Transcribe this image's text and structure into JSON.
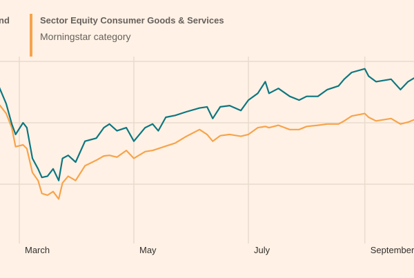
{
  "legend": {
    "series1_label_visible": "nd",
    "series2_title": "Sector Equity Consumer Goods & Services",
    "series2_subtitle": "Morningstar category"
  },
  "colors": {
    "background": "#fff1e5",
    "series1": "#0d7680",
    "series2": "#f7a34b",
    "grid": "#e9dccd"
  },
  "chart_data": {
    "type": "line",
    "title": "",
    "xlabel": "",
    "ylabel": "",
    "x_ticks": [
      {
        "date": "2020-03-01",
        "label": "March"
      },
      {
        "date": "2020-05-01",
        "label": "May"
      },
      {
        "date": "2020-07-01",
        "label": "July"
      },
      {
        "date": "2020-09-01",
        "label": "September"
      }
    ],
    "y_gridlines": [
      90,
      100,
      110
    ],
    "ylim": [
      80,
      112
    ],
    "xlim": [
      "2020-02-19",
      "2020-09-29"
    ],
    "grid": true,
    "legend_placement": "top",
    "x": [
      "2020-02-19",
      "2020-02-23",
      "2020-02-26",
      "2020-02-28",
      "2020-03-03",
      "2020-03-05",
      "2020-03-08",
      "2020-03-11",
      "2020-03-13",
      "2020-03-16",
      "2020-03-19",
      "2020-03-22",
      "2020-03-24",
      "2020-03-27",
      "2020-03-31",
      "2020-04-05",
      "2020-04-11",
      "2020-04-15",
      "2020-04-18",
      "2020-04-22",
      "2020-04-27",
      "2020-05-01",
      "2020-05-07",
      "2020-05-11",
      "2020-05-14",
      "2020-05-18",
      "2020-05-23",
      "2020-05-29",
      "2020-06-05",
      "2020-06-09",
      "2020-06-12",
      "2020-06-16",
      "2020-06-21",
      "2020-06-27",
      "2020-07-01",
      "2020-07-06",
      "2020-07-10",
      "2020-07-12",
      "2020-07-17",
      "2020-07-23",
      "2020-07-28",
      "2020-08-01",
      "2020-08-07",
      "2020-08-12",
      "2020-08-18",
      "2020-08-21",
      "2020-08-25",
      "2020-09-01",
      "2020-09-03",
      "2020-09-07",
      "2020-09-15",
      "2020-09-20",
      "2020-09-24",
      "2020-09-29"
    ],
    "series": [
      {
        "values": [
          106.0,
          103.1,
          99.8,
          98.1,
          100.0,
          99.2,
          94.2,
          92.5,
          91.1,
          91.3,
          92.5,
          90.6,
          94.2,
          94.7,
          93.6,
          97.0,
          97.5,
          99.2,
          99.8,
          98.7,
          99.2,
          97.0,
          99.2,
          99.8,
          98.7,
          100.9,
          101.2,
          101.8,
          102.4,
          102.6,
          100.7,
          102.6,
          102.8,
          102.0,
          103.7,
          104.8,
          106.7,
          104.8,
          105.6,
          104.3,
          103.7,
          104.3,
          104.3,
          105.4,
          106.0,
          107.1,
          108.2,
          108.8,
          107.6,
          106.7,
          107.1,
          105.4,
          106.7,
          107.6
        ]
      },
      {
        "name": "Sector Equity Consumer Goods & Services",
        "values": [
          103.1,
          101.5,
          99.2,
          96.1,
          96.4,
          95.8,
          91.9,
          90.6,
          88.5,
          88.2,
          88.8,
          87.6,
          90.2,
          91.3,
          90.6,
          93.0,
          93.9,
          94.6,
          94.7,
          94.4,
          95.5,
          94.2,
          95.3,
          95.5,
          95.8,
          96.2,
          96.7,
          97.8,
          98.9,
          98.1,
          97.0,
          97.9,
          98.1,
          97.8,
          98.1,
          99.2,
          99.4,
          99.2,
          99.6,
          98.9,
          98.9,
          99.4,
          99.6,
          99.8,
          99.8,
          100.3,
          101.1,
          101.5,
          100.9,
          100.3,
          100.7,
          99.8,
          100.1,
          100.7
        ]
      }
    ]
  }
}
